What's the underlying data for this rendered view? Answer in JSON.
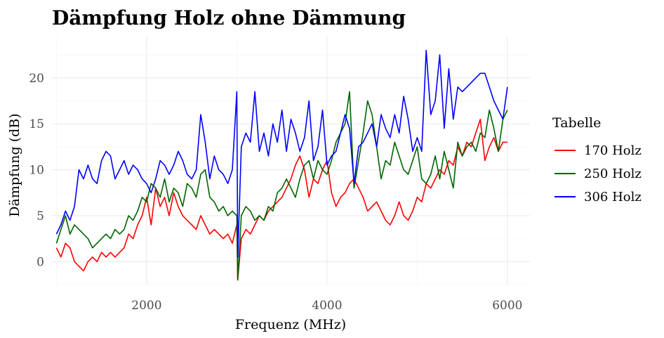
{
  "chart_data": {
    "type": "line",
    "title": "Dämpfung Holz ohne Dämmung",
    "xlabel": "Frequenz (MHz)",
    "ylabel": "Dämpfung (dB)",
    "xlim": [
      950,
      6250
    ],
    "ylim": [
      -2.5,
      24.5
    ],
    "x_ticks": [
      2000,
      4000,
      6000
    ],
    "y_ticks": [
      0,
      5,
      10,
      15,
      20
    ],
    "grid": true,
    "legend": {
      "title": "Tabelle",
      "position": "right"
    },
    "series": [
      {
        "name": "170 Holz",
        "color": "#ff0000",
        "x": [
          1000,
          1050,
          1100,
          1150,
          1200,
          1250,
          1300,
          1350,
          1400,
          1450,
          1500,
          1550,
          1600,
          1650,
          1700,
          1750,
          1800,
          1850,
          1900,
          1950,
          2000,
          2050,
          2100,
          2150,
          2200,
          2250,
          2300,
          2350,
          2400,
          2450,
          2500,
          2550,
          2600,
          2650,
          2700,
          2750,
          2800,
          2850,
          2900,
          2950,
          3000,
          3010,
          3050,
          3100,
          3150,
          3200,
          3250,
          3300,
          3350,
          3400,
          3450,
          3500,
          3550,
          3600,
          3650,
          3700,
          3750,
          3800,
          3850,
          3900,
          3950,
          4000,
          4050,
          4100,
          4150,
          4200,
          4250,
          4300,
          4350,
          4400,
          4450,
          4500,
          4550,
          4600,
          4650,
          4700,
          4750,
          4800,
          4850,
          4900,
          4950,
          5000,
          5050,
          5100,
          5150,
          5200,
          5250,
          5300,
          5350,
          5400,
          5450,
          5500,
          5550,
          5600,
          5650,
          5700,
          5750,
          5800,
          5850,
          5900,
          5950,
          6000
        ],
        "y": [
          1.5,
          0.5,
          2.0,
          1.5,
          0.0,
          -0.5,
          -1.0,
          0.0,
          0.5,
          0.0,
          1.0,
          0.5,
          1.0,
          0.5,
          1.0,
          1.5,
          3.0,
          2.5,
          4.0,
          5.0,
          7.0,
          4.0,
          8.0,
          6.0,
          7.0,
          5.0,
          7.5,
          6.0,
          5.0,
          4.5,
          4.0,
          3.5,
          5.0,
          4.0,
          3.0,
          3.5,
          3.0,
          2.5,
          3.0,
          2.0,
          4.0,
          -2.0,
          2.5,
          3.5,
          3.0,
          4.0,
          5.0,
          4.5,
          5.5,
          6.0,
          6.5,
          7.0,
          8.0,
          9.0,
          10.5,
          11.5,
          10.0,
          7.0,
          9.0,
          8.5,
          10.0,
          11.0,
          7.5,
          6.0,
          7.0,
          7.5,
          8.5,
          9.0,
          8.0,
          7.0,
          5.5,
          6.0,
          6.5,
          5.5,
          4.5,
          4.0,
          5.0,
          6.5,
          5.0,
          4.5,
          5.5,
          7.0,
          6.5,
          8.5,
          8.0,
          9.0,
          10.0,
          9.5,
          11.0,
          10.5,
          12.5,
          11.5,
          13.0,
          12.5,
          14.0,
          15.5,
          11.0,
          12.5,
          13.5,
          12.0,
          13.0,
          13.0
        ]
      },
      {
        "name": "250 Holz",
        "color": "#006400",
        "x": [
          1000,
          1050,
          1100,
          1150,
          1200,
          1250,
          1300,
          1350,
          1400,
          1450,
          1500,
          1550,
          1600,
          1650,
          1700,
          1750,
          1800,
          1850,
          1900,
          1950,
          2000,
          2050,
          2100,
          2150,
          2200,
          2250,
          2300,
          2350,
          2400,
          2450,
          2500,
          2550,
          2600,
          2650,
          2700,
          2750,
          2800,
          2850,
          2900,
          2950,
          3000,
          3010,
          3050,
          3100,
          3150,
          3200,
          3250,
          3300,
          3350,
          3400,
          3450,
          3500,
          3550,
          3600,
          3650,
          3700,
          3750,
          3800,
          3850,
          3900,
          3950,
          4000,
          4050,
          4100,
          4150,
          4200,
          4250,
          4300,
          4350,
          4400,
          4450,
          4500,
          4550,
          4600,
          4650,
          4700,
          4750,
          4800,
          4850,
          4900,
          4950,
          5000,
          5050,
          5100,
          5150,
          5200,
          5250,
          5300,
          5350,
          5400,
          5450,
          5500,
          5550,
          5600,
          5650,
          5700,
          5750,
          5800,
          5850,
          5900,
          5950,
          6000
        ],
        "y": [
          2.0,
          3.5,
          5.0,
          3.0,
          4.0,
          3.5,
          3.0,
          2.5,
          1.5,
          2.0,
          2.5,
          3.0,
          2.5,
          3.5,
          3.0,
          3.5,
          5.0,
          4.5,
          5.5,
          7.0,
          6.5,
          8.5,
          8.0,
          7.0,
          9.0,
          6.5,
          8.0,
          7.5,
          6.0,
          8.5,
          8.0,
          7.0,
          9.5,
          10.0,
          7.0,
          6.5,
          5.5,
          6.0,
          5.0,
          5.5,
          5.0,
          -2.0,
          5.0,
          6.0,
          5.5,
          4.5,
          5.0,
          4.5,
          6.0,
          5.5,
          7.5,
          8.0,
          9.0,
          8.0,
          7.0,
          9.0,
          10.5,
          11.0,
          9.0,
          11.0,
          10.0,
          9.5,
          11.0,
          13.0,
          14.0,
          15.0,
          18.5,
          8.0,
          11.0,
          14.0,
          17.5,
          16.0,
          12.5,
          9.0,
          11.0,
          10.5,
          13.0,
          11.5,
          10.0,
          9.5,
          11.0,
          12.5,
          9.0,
          8.5,
          9.5,
          11.5,
          9.0,
          12.0,
          10.0,
          8.0,
          13.0,
          11.5,
          12.5,
          13.0,
          12.0,
          14.0,
          13.5,
          16.5,
          14.5,
          12.0,
          15.5,
          16.5
        ]
      },
      {
        "name": "306 Holz",
        "color": "#0000ff",
        "x": [
          1000,
          1050,
          1100,
          1150,
          1200,
          1250,
          1300,
          1350,
          1400,
          1450,
          1500,
          1550,
          1600,
          1650,
          1700,
          1750,
          1800,
          1850,
          1900,
          1950,
          2000,
          2050,
          2100,
          2150,
          2200,
          2250,
          2300,
          2350,
          2400,
          2450,
          2500,
          2550,
          2600,
          2650,
          2700,
          2750,
          2800,
          2850,
          2900,
          2950,
          3000,
          3010,
          3050,
          3100,
          3150,
          3200,
          3250,
          3300,
          3350,
          3400,
          3450,
          3500,
          3550,
          3600,
          3650,
          3700,
          3750,
          3800,
          3850,
          3900,
          3950,
          4000,
          4050,
          4100,
          4150,
          4200,
          4250,
          4300,
          4350,
          4400,
          4450,
          4500,
          4550,
          4600,
          4650,
          4700,
          4750,
          4800,
          4850,
          4900,
          4950,
          5000,
          5050,
          5100,
          5150,
          5200,
          5250,
          5300,
          5350,
          5400,
          5450,
          5500,
          5550,
          5600,
          5650,
          5700,
          5750,
          5800,
          5850,
          5900,
          5950,
          6000
        ],
        "y": [
          3.0,
          4.0,
          5.5,
          4.5,
          6.0,
          10.0,
          9.0,
          10.5,
          9.0,
          8.5,
          11.0,
          12.0,
          11.5,
          9.0,
          10.0,
          11.0,
          9.5,
          10.5,
          10.0,
          9.0,
          8.5,
          7.5,
          9.0,
          11.0,
          10.5,
          9.5,
          10.5,
          12.0,
          11.0,
          9.5,
          9.0,
          10.0,
          16.0,
          13.0,
          9.0,
          11.5,
          10.0,
          9.5,
          8.5,
          10.0,
          18.5,
          0.5,
          12.5,
          14.0,
          13.0,
          18.5,
          12.0,
          14.0,
          11.5,
          15.0,
          13.0,
          16.5,
          12.0,
          15.5,
          14.0,
          12.0,
          13.5,
          17.5,
          11.0,
          12.5,
          16.5,
          10.5,
          11.5,
          12.0,
          14.0,
          16.0,
          14.5,
          8.5,
          12.5,
          13.0,
          14.0,
          15.0,
          12.5,
          16.0,
          14.5,
          13.5,
          16.0,
          14.0,
          18.0,
          15.5,
          12.0,
          13.5,
          12.0,
          23.0,
          16.0,
          17.5,
          22.5,
          14.5,
          21.0,
          15.5,
          19.0,
          18.5,
          19.0,
          19.5,
          20.0,
          20.5,
          20.5,
          19.0,
          17.5,
          16.5,
          15.5,
          19.0
        ]
      }
    ]
  }
}
